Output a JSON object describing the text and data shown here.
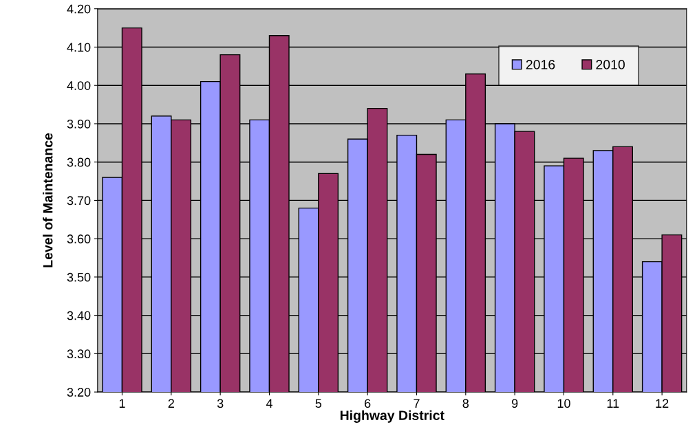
{
  "chart_data": {
    "type": "bar",
    "xlabel": "Highway District",
    "ylabel": "Level of Maintenance",
    "categories": [
      "1",
      "2",
      "3",
      "4",
      "5",
      "6",
      "7",
      "8",
      "9",
      "10",
      "11",
      "12"
    ],
    "series": [
      {
        "name": "2016",
        "color": "#9999ff",
        "values": [
          3.76,
          3.92,
          4.01,
          3.91,
          3.68,
          3.86,
          3.87,
          3.91,
          3.9,
          3.79,
          3.83,
          3.54
        ]
      },
      {
        "name": "2010",
        "color": "#993366",
        "values": [
          4.15,
          3.91,
          4.08,
          4.13,
          3.77,
          3.94,
          3.82,
          4.03,
          3.88,
          3.81,
          3.84,
          3.61
        ]
      }
    ],
    "ylim": [
      3.2,
      4.2
    ],
    "yticks": [
      {
        "value": 3.2,
        "label": "3.20"
      },
      {
        "value": 3.3,
        "label": "3.30"
      },
      {
        "value": 3.4,
        "label": "3.40"
      },
      {
        "value": 3.5,
        "label": "3.50"
      },
      {
        "value": 3.6,
        "label": "3.60"
      },
      {
        "value": 3.7,
        "label": "3.70"
      },
      {
        "value": 3.8,
        "label": "3.80"
      },
      {
        "value": 3.9,
        "label": "3.90"
      },
      {
        "value": 4.0,
        "label": "4.00"
      },
      {
        "value": 4.1,
        "label": "4.10"
      },
      {
        "value": 4.2,
        "label": "4.20"
      }
    ],
    "grid": "y",
    "legend": "top right"
  }
}
